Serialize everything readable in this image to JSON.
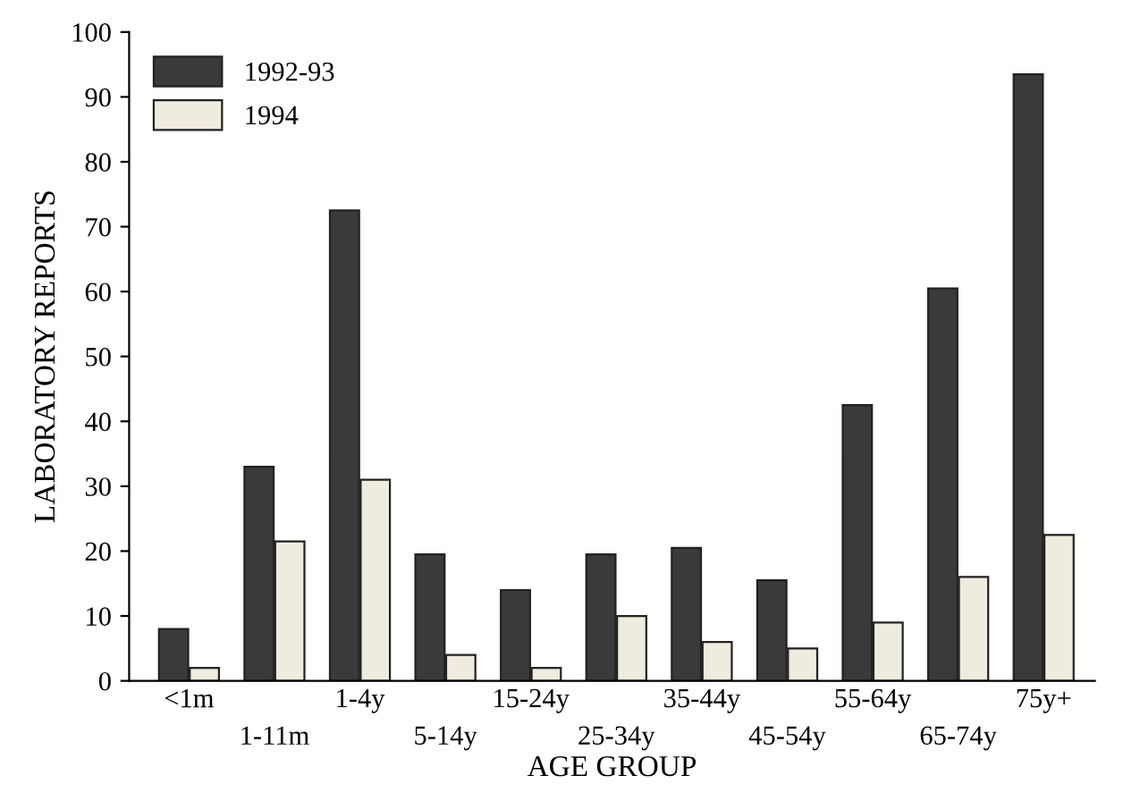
{
  "chart_data": {
    "type": "bar",
    "xlabel": "AGE GROUP",
    "ylabel": "LABORATORY REPORTS",
    "categories": [
      "<1m",
      "1-11m",
      "1-4y",
      "5-14y",
      "15-24y",
      "25-34y",
      "35-44y",
      "45-54y",
      "55-64y",
      "65-74y",
      "75y+"
    ],
    "series": [
      {
        "name": "1992-93",
        "color": "#3a3a3a",
        "values": [
          8,
          33,
          72.5,
          19.5,
          14,
          19.5,
          20.5,
          15.5,
          42.5,
          60.5,
          93.5
        ]
      },
      {
        "name": "1994",
        "color": "#f0ebdf",
        "values": [
          2,
          21.5,
          31,
          4,
          2,
          10,
          6,
          5,
          9,
          16,
          22.5
        ]
      }
    ],
    "ylim": [
      0,
      100
    ],
    "yticks": [
      0,
      10,
      20,
      30,
      40,
      50,
      60,
      70,
      80,
      90,
      100
    ],
    "legend": "top left",
    "grid": false
  }
}
